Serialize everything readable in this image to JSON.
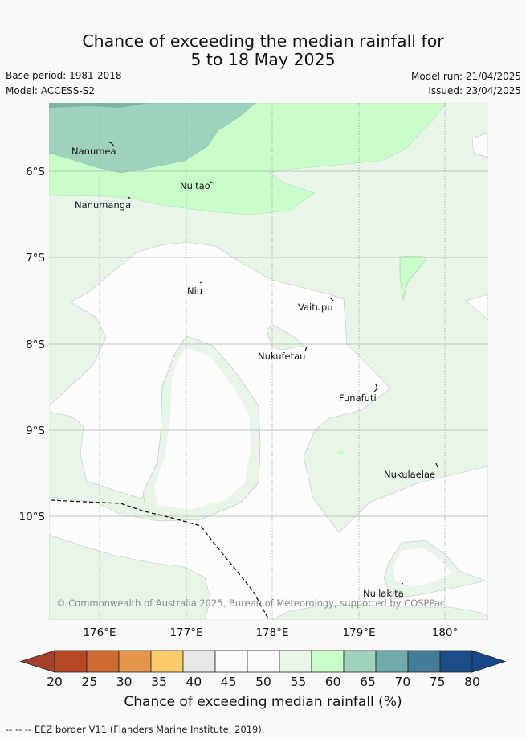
{
  "title": {
    "line1": "Chance of exceeding the median rainfall for",
    "line2": "5 to 18 May 2025"
  },
  "meta": {
    "base_period": "Base period: 1981-2018",
    "model": "Model: ACCESS-S2",
    "model_run": "Model run: 21/04/2025",
    "issued": "Issued: 23/04/2025"
  },
  "map": {
    "lon_labels": [
      "176°E",
      "177°E",
      "178°E",
      "179°E",
      "180°"
    ],
    "lat_labels": [
      "6°S",
      "7°S",
      "8°S",
      "9°S",
      "10°S"
    ],
    "places": [
      {
        "name": "Nanumea"
      },
      {
        "name": "Nuitao"
      },
      {
        "name": "Nanumanga"
      },
      {
        "name": "Niu"
      },
      {
        "name": "Vaitupu"
      },
      {
        "name": "Nukufetau"
      },
      {
        "name": "Funafuti"
      },
      {
        "name": "Nukulaelae"
      },
      {
        "name": "Nuilakita"
      }
    ],
    "copyright": "© Commonwealth of Australia 2025, Bureau of Meteorology, supported by COSPPac",
    "category_colors": {
      "55-60": "#eaf5ea",
      "50-55": "#fbfcfb",
      "60-65": "#c8fcc9",
      "65-70": "#9fd2bd"
    }
  },
  "colorbar": {
    "ticks": [
      "20",
      "25",
      "30",
      "35",
      "40",
      "45",
      "50",
      "55",
      "60",
      "65",
      "70",
      "75",
      "80"
    ],
    "colors": [
      "#b64828",
      "#cf6a35",
      "#e4964a",
      "#fccb69",
      "#e7e8e5",
      "#fafbfa",
      "#fafbfa",
      "#eaf5ea",
      "#c8fcc9",
      "#9fd2bd",
      "#70a9a9",
      "#457d98",
      "#1c4d88"
    ],
    "below_color": "#a4402a",
    "above_color": "#16498a",
    "label": "Chance of exceeding median rainfall (%)"
  },
  "footnote": "--  --  -- EEZ border V11 (Flanders Marine Institute, 2019)."
}
